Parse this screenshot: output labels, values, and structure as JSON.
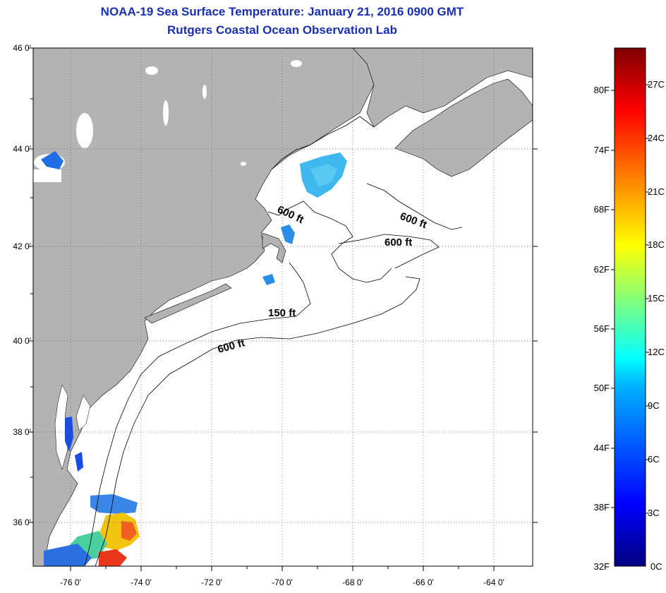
{
  "header": {
    "title": "NOAA-19 Sea Surface Temperature:  January 21, 2016 0900 GMT",
    "subtitle": "Rutgers Coastal Ocean Observation Lab"
  },
  "map": {
    "lat_labels": [
      "46 0'",
      "44 0'",
      "42 0'",
      "40 0'",
      "38 0'",
      "36 0'"
    ],
    "lon_labels": [
      "-76 0'",
      "-74 0'",
      "-72 0'",
      "-70 0'",
      "-68 0'",
      "-66 0'",
      "-64 0'"
    ],
    "lat_range": [
      35.0,
      46.0
    ],
    "lon_range": [
      -77.0,
      -63.0
    ],
    "land_color": "#b3b3b3",
    "ocean_color": "#ffffff",
    "grid": "dotted",
    "contour_labels": [
      "600 ft",
      "600 ft",
      "600 ft",
      "150 ft",
      "600 ft"
    ]
  },
  "colorbar": {
    "fahrenheit_labels": [
      "80F",
      "74F",
      "68F",
      "62F",
      "56F",
      "50F",
      "44F",
      "38F",
      "32F"
    ],
    "celsius_labels": [
      "27C",
      "24C",
      "21C",
      "18C",
      "15C",
      "12C",
      "9C",
      "6C",
      "3C",
      "0C"
    ],
    "range_c": [
      0,
      29
    ]
  }
}
